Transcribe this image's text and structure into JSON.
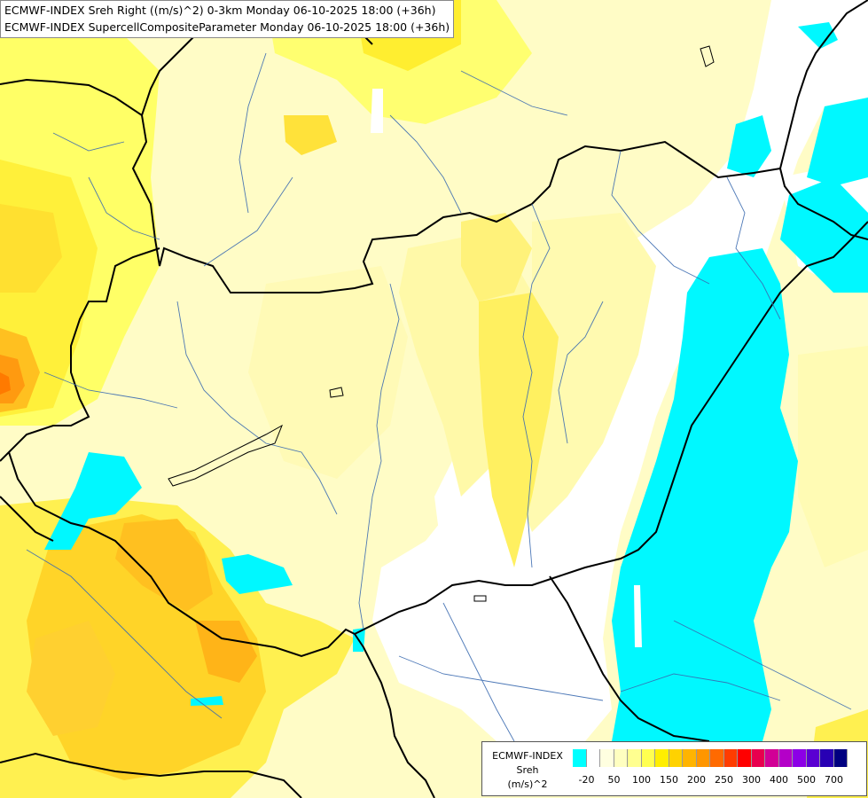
{
  "title": {
    "line1": "ECMWF-INDEX Sreh Right ((m/s)^2) 0-3km Monday 06-10-2025 18:00 (+36h)",
    "line2": "ECMWF-INDEX SupercellCompositeParameter Monday 06-10-2025 18:00 (+36h)"
  },
  "legend": {
    "label1": "ECMWF-INDEX",
    "label2": "Sreh",
    "label3": "(m/s)^2",
    "colors": [
      "#00ffff",
      "#ffffff",
      "#ffffe0",
      "#ffffc0",
      "#ffff90",
      "#ffff50",
      "#ffee00",
      "#ffd200",
      "#ffb400",
      "#ff9600",
      "#ff6a00",
      "#ff3c00",
      "#ff0000",
      "#e8004e",
      "#d20096",
      "#b400c8",
      "#8c00e6",
      "#5a00d2",
      "#2800b4",
      "#000080"
    ],
    "ticks": [
      "-20",
      "50",
      "100",
      "150",
      "200",
      "250",
      "300",
      "400",
      "500",
      "700"
    ]
  }
}
